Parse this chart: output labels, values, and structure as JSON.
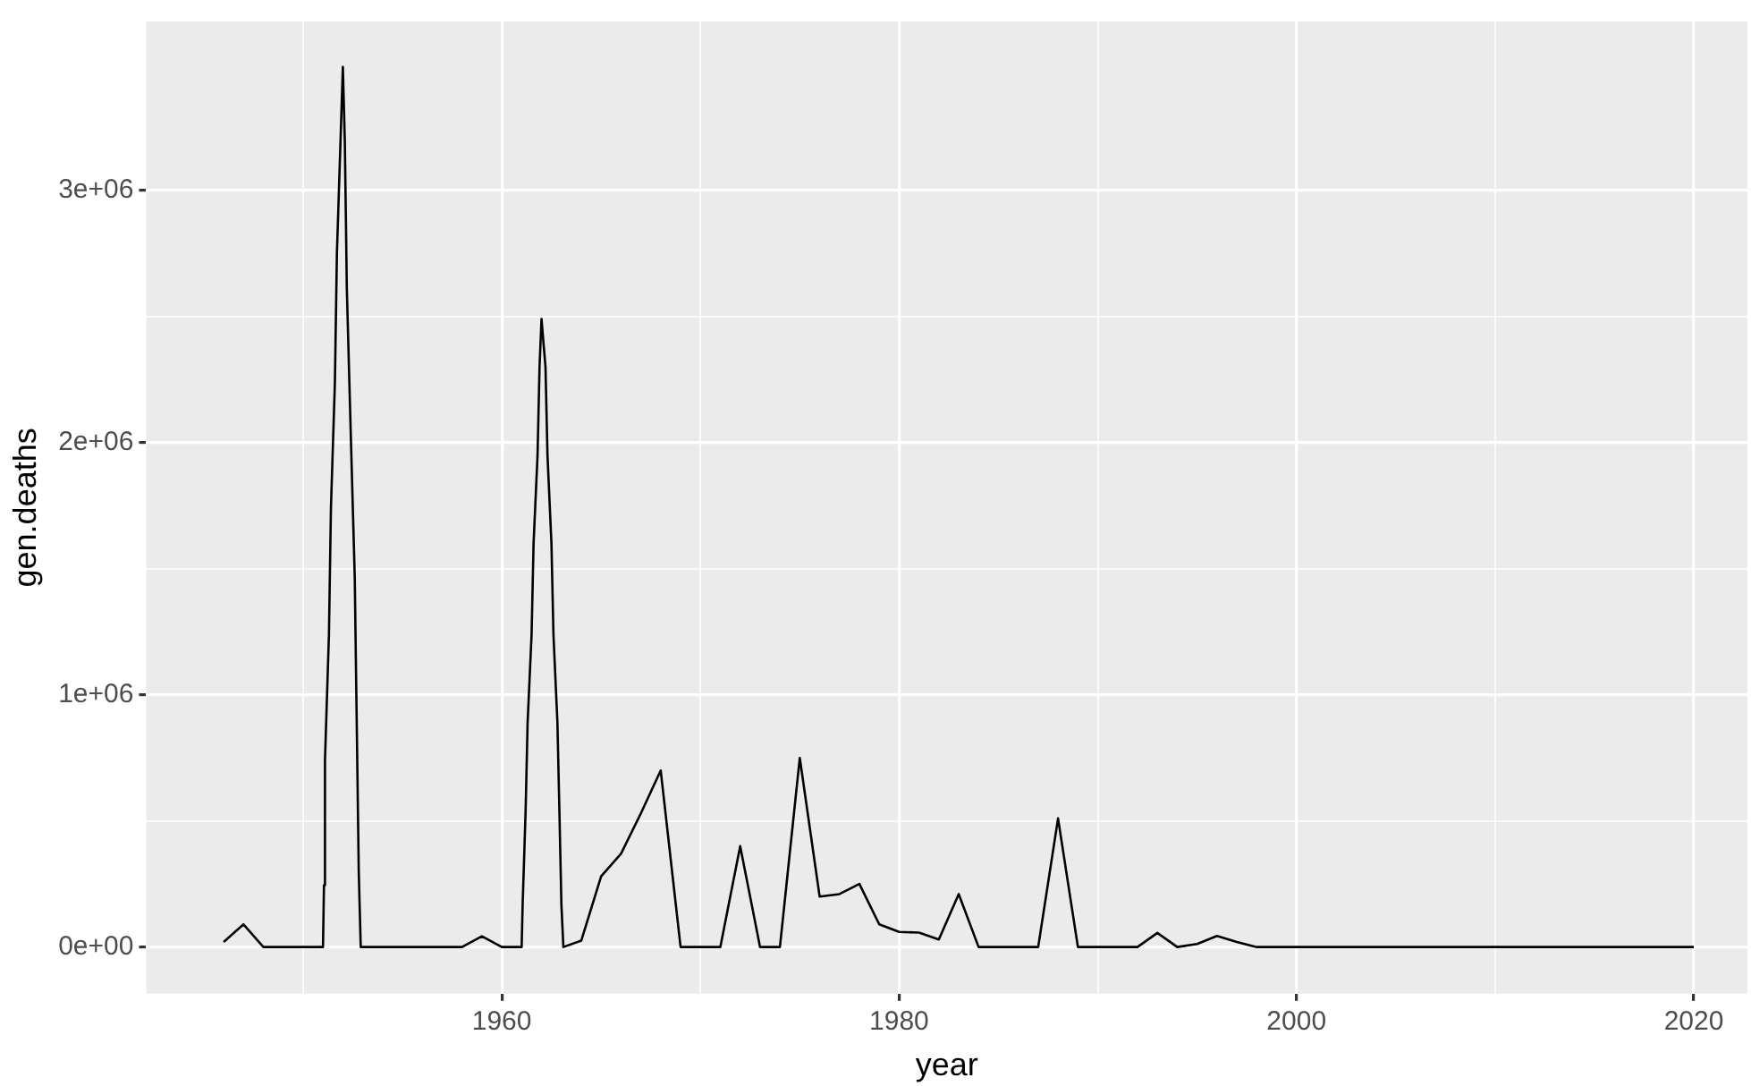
{
  "chart_data": {
    "type": "line",
    "xlabel": "year",
    "ylabel": "gen.deaths",
    "x": [
      1946,
      1947,
      1948,
      1951,
      1951.05,
      1951.1,
      1951.3,
      1951.4,
      1951.6,
      1951.7,
      1951.9,
      1952.0,
      1952.1,
      1952.2,
      1952.4,
      1952.6,
      1952.7,
      1952.8,
      1952.9,
      1958,
      1959,
      1960,
      1961,
      1961.05,
      1961.2,
      1961.3,
      1961.5,
      1961.6,
      1961.8,
      1961.9,
      1962.0,
      1962.2,
      1962.3,
      1962.5,
      1962.6,
      1962.8,
      1962.9,
      1963.0,
      1963.1,
      1964,
      1965,
      1966,
      1967,
      1968,
      1969,
      1971,
      1972,
      1973,
      1974,
      1975,
      1976,
      1977,
      1978,
      1979,
      1980,
      1981,
      1982,
      1983,
      1984,
      1987,
      1988,
      1989,
      1992,
      1993,
      1994,
      1995,
      1996,
      1997,
      1998,
      2020
    ],
    "series": [
      {
        "color": "#000000",
        "values": [
          20000,
          90000,
          0,
          0,
          245000,
          740000,
          1240000,
          1740000,
          2240000,
          2750000,
          3240000,
          3490000,
          3190000,
          2610000,
          2030000,
          1460000,
          880000,
          300000,
          0,
          0,
          43000,
          0,
          0,
          170000,
          540000,
          890000,
          1240000,
          1600000,
          1950000,
          2300000,
          2490000,
          2300000,
          1950000,
          1600000,
          1240000,
          890000,
          540000,
          170000,
          0,
          25000,
          280000,
          370000,
          530000,
          700000,
          0,
          0,
          400000,
          0,
          0,
          750000,
          200000,
          210000,
          250000,
          90000,
          60000,
          57000,
          30000,
          210000,
          0,
          0,
          510000,
          0,
          0,
          56000,
          0,
          12000,
          44000,
          20000,
          0,
          0
        ]
      }
    ],
    "xlim": [
      1942.1,
      2022.7
    ],
    "ylim": [
      -185000,
      3670000
    ],
    "xticks": [
      {
        "value": 1950,
        "label": null
      },
      1960,
      {
        "value": 1970,
        "label": null
      },
      1980,
      {
        "value": 1990,
        "label": null
      },
      2000,
      {
        "value": 2010,
        "label": null
      },
      2020
    ],
    "yticks": [
      {
        "value": 0,
        "label": "0e+00"
      },
      {
        "value": 500000,
        "label": null
      },
      {
        "value": 1000000,
        "label": "1e+06"
      },
      {
        "value": 1500000,
        "label": null
      },
      {
        "value": 2000000,
        "label": "2e+06"
      },
      {
        "value": 2500000,
        "label": null
      },
      {
        "value": 3000000,
        "label": "3e+06"
      }
    ],
    "grid": true,
    "legend": false,
    "marker": "none",
    "line_style": "solid"
  }
}
